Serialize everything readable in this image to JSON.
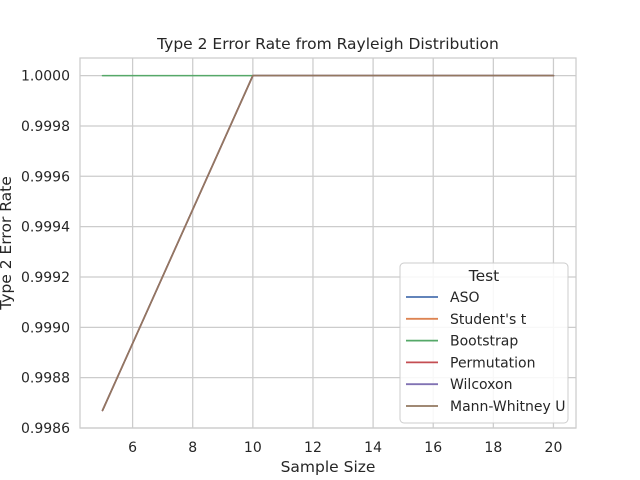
{
  "chart_data": {
    "type": "line",
    "title": "Type 2 Error Rate from Rayleigh Distribution",
    "xlabel": "Sample Size",
    "ylabel": "Type 2 Error Rate",
    "xlim": [
      4.25,
      20.75
    ],
    "ylim": [
      0.9986,
      1.00007
    ],
    "xticks": [
      "6",
      "8",
      "10",
      "12",
      "14",
      "16",
      "18",
      "20"
    ],
    "yticks": [
      "0.9986",
      "0.9988",
      "0.9990",
      "0.9992",
      "0.9994",
      "0.9996",
      "0.9998",
      "1.0000"
    ],
    "grid": true,
    "legend": {
      "title": "Test",
      "placement": "lower-right"
    },
    "x": [
      5,
      10,
      15,
      20
    ],
    "series": [
      {
        "name": "ASO",
        "color": "#4c72b0",
        "values": [
          0.99867,
          1.0,
          1.0,
          1.0
        ]
      },
      {
        "name": "Student's t",
        "color": "#dd8452",
        "values": [
          0.99867,
          1.0,
          1.0,
          1.0
        ]
      },
      {
        "name": "Bootstrap",
        "color": "#55a868",
        "values": [
          1.0,
          1.0,
          1.0,
          1.0
        ]
      },
      {
        "name": "Permutation",
        "color": "#c44e52",
        "values": [
          0.99867,
          1.0,
          1.0,
          1.0
        ]
      },
      {
        "name": "Wilcoxon",
        "color": "#8172b3",
        "values": [
          0.99867,
          1.0,
          1.0,
          1.0
        ]
      },
      {
        "name": "Mann-Whitney U",
        "color": "#937860",
        "values": [
          0.99867,
          1.0,
          1.0,
          1.0
        ]
      }
    ]
  }
}
